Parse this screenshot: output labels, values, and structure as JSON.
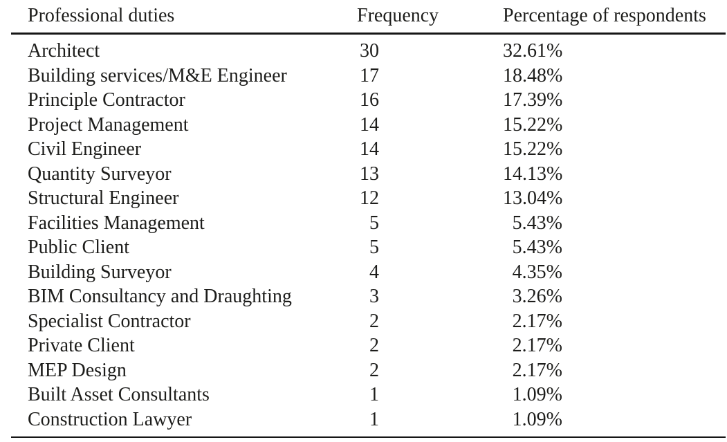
{
  "table": {
    "columns": [
      "Professional duties",
      "Frequency",
      "Percentage of respondents"
    ],
    "rows": [
      [
        "Architect",
        "30",
        "32.61%"
      ],
      [
        "Building services/M&E Engineer",
        "17",
        "18.48%"
      ],
      [
        "Principle Contractor",
        "16",
        "17.39%"
      ],
      [
        "Project Management",
        "14",
        "15.22%"
      ],
      [
        "Civil Engineer",
        "14",
        "15.22%"
      ],
      [
        "Quantity Surveyor",
        "13",
        "14.13%"
      ],
      [
        "Structural Engineer",
        "12",
        "13.04%"
      ],
      [
        "Facilities Management",
        "5",
        "5.43%"
      ],
      [
        "Public Client",
        "5",
        "5.43%"
      ],
      [
        "Building Surveyor",
        "4",
        "4.35%"
      ],
      [
        "BIM Consultancy and Draughting",
        "3",
        "3.26%"
      ],
      [
        "Specialist Contractor",
        "2",
        "2.17%"
      ],
      [
        "Private Client",
        "2",
        "2.17%"
      ],
      [
        "MEP Design",
        "2",
        "2.17%"
      ],
      [
        "Built Asset Consultants",
        "1",
        "1.09%"
      ],
      [
        "Construction Lawyer",
        "1",
        "1.09%"
      ]
    ]
  },
  "colors": {
    "text": "#1d1d1b",
    "rule": "#161616",
    "background": "#ffffff"
  },
  "chart_data": {
    "type": "table",
    "title": "",
    "columns": [
      "Professional duties",
      "Frequency",
      "Percentage of respondents"
    ],
    "categories": [
      "Architect",
      "Building services/M&E Engineer",
      "Principle Contractor",
      "Project Management",
      "Civil Engineer",
      "Quantity Surveyor",
      "Structural Engineer",
      "Facilities Management",
      "Public Client",
      "Building Surveyor",
      "BIM Consultancy and Draughting",
      "Specialist Contractor",
      "Private Client",
      "MEP Design",
      "Built Asset Consultants",
      "Construction Lawyer"
    ],
    "series": [
      {
        "name": "Frequency",
        "values": [
          30,
          17,
          16,
          14,
          14,
          13,
          12,
          5,
          5,
          4,
          3,
          2,
          2,
          2,
          1,
          1
        ]
      },
      {
        "name": "Percentage of respondents",
        "values": [
          32.61,
          18.48,
          17.39,
          15.22,
          15.22,
          14.13,
          13.04,
          5.43,
          5.43,
          4.35,
          3.26,
          2.17,
          2.17,
          2.17,
          1.09,
          1.09
        ]
      }
    ]
  }
}
